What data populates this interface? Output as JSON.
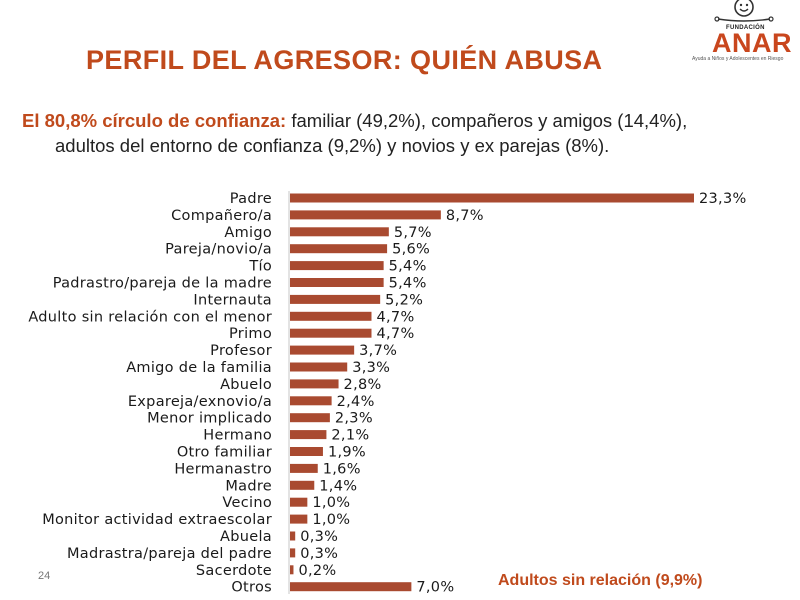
{
  "logo": {
    "foundation": "FUNDACIÓN",
    "name": "ANAR",
    "tagline": "Ayuda a Niños y Adolescentes en Riesgo"
  },
  "slide": {
    "title": "PERFIL DEL AGRESOR: QUIÉN ABUSA",
    "subtitle_lead": "El 80,8% círculo de confianza:",
    "subtitle_line1": " familiar (49,2%), compañeros y amigos (14,4%),",
    "subtitle_line2": "adultos del entorno de confianza (9,2%) y novios y ex parejas (8%).",
    "page_number": "24",
    "note": "Adultos sin relación (9,9%)"
  },
  "colors": {
    "bar": "#a94a30",
    "accent": "#c04a1c"
  },
  "chart_data": {
    "type": "bar",
    "orientation": "horizontal",
    "title": "",
    "xlabel": "",
    "ylabel": "",
    "grid": false,
    "xlim": [
      0,
      23.3
    ],
    "categories": [
      "Padre",
      "Compañero/a",
      "Amigo",
      "Pareja/novio/a",
      "Tío",
      "Padrastro/pareja de la madre",
      "Internauta",
      "Adulto sin relación con el menor",
      "Primo",
      "Profesor",
      "Amigo de la familia",
      "Abuelo",
      "Expareja/exnovio/a",
      "Menor implicado",
      "Hermano",
      "Otro familiar",
      "Hermanastro",
      "Madre",
      "Vecino",
      "Monitor actividad extraescolar",
      "Abuela",
      "Madrastra/pareja del padre",
      "Sacerdote",
      "Otros"
    ],
    "values": [
      23.3,
      8.7,
      5.7,
      5.6,
      5.4,
      5.4,
      5.2,
      4.7,
      4.7,
      3.7,
      3.3,
      2.8,
      2.4,
      2.3,
      2.1,
      1.9,
      1.6,
      1.4,
      1.0,
      1.0,
      0.3,
      0.3,
      0.2,
      7.0
    ],
    "value_labels": [
      "23,3%",
      "8,7%",
      "5,7%",
      "5,6%",
      "5,4%",
      "5,4%",
      "5,2%",
      "4,7%",
      "4,7%",
      "3,7%",
      "3,3%",
      "2,8%",
      "2,4%",
      "2,3%",
      "2,1%",
      "1,9%",
      "1,6%",
      "1,4%",
      "1,0%",
      "1,0%",
      "0,3%",
      "0,3%",
      "0,2%",
      "7,0%"
    ]
  }
}
